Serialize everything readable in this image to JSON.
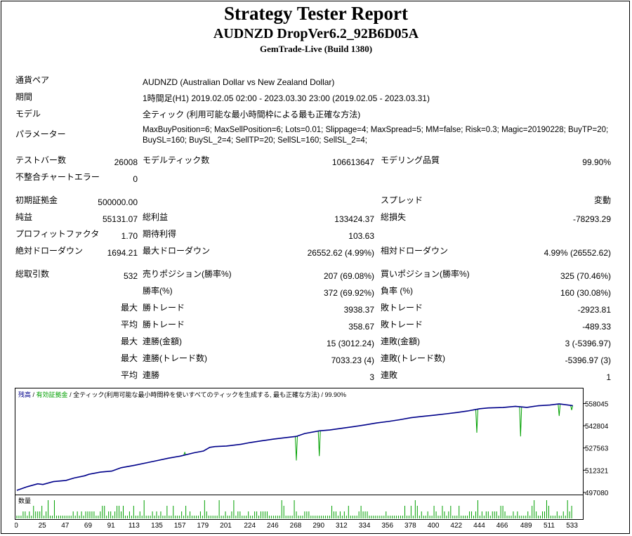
{
  "header": {
    "title": "Strategy Tester Report",
    "subtitle": "AUDNZD DropVer6.2_92B6D05A",
    "server": "GemTrade-Live (Build 1380)"
  },
  "info": {
    "symbol_label": "通貨ペア",
    "symbol_value": "AUDNZD (Australian Dollar vs New Zealand Dollar)",
    "period_label": "期間",
    "period_value": "1時間足(H1) 2019.02.05 02:00 - 2023.03.30 23:00 (2019.02.05 - 2023.03.31)",
    "model_label": "モデル",
    "model_value": "全ティック (利用可能な最小時間枠による最も正確な方法)",
    "params_label": "パラメーター",
    "params_line1": "MaxBuyPosition=6; MaxSellPosition=6; Lots=0.01; Slippage=4; MaxSpread=5; MM=false; Risk=0.3; Magic=20190228; BuyTP=20;",
    "params_line2": "BuySL=160; BuySL_2=4; SellTP=20; SellSL=160; SellSL_2=4;"
  },
  "stats": {
    "bars_label": "テストバー数",
    "bars_value": "26008",
    "ticks_label": "モデルティック数",
    "ticks_value": "106613647",
    "quality_label": "モデリング品質",
    "quality_value": "99.90%",
    "mismatch_label": "不整合チャートエラー",
    "mismatch_value": "0",
    "deposit_label": "初期証拠金",
    "deposit_value": "500000.00",
    "spread_label": "スプレッド",
    "spread_value": "変動",
    "net_label": "純益",
    "net_value": "55131.07",
    "gross_profit_label": "総利益",
    "gross_profit_value": "133424.37",
    "gross_loss_label": "総損失",
    "gross_loss_value": "-78293.29",
    "pf_label": "プロフィットファクタ",
    "pf_value": "1.70",
    "expected_label": "期待利得",
    "expected_value": "103.63",
    "abs_dd_label": "絶対ドローダウン",
    "abs_dd_value": "1694.21",
    "max_dd_label": "最大ドローダウン",
    "max_dd_value": "26552.62 (4.99%)",
    "rel_dd_label": "相対ドローダウン",
    "rel_dd_value": "4.99% (26552.62)",
    "trades_label": "総取引数",
    "trades_value": "532",
    "short_label": "売りポジション(勝率%)",
    "short_value": "207 (69.08%)",
    "long_label": "買いポジション(勝率%)",
    "long_value": "325 (70.46%)",
    "win_label": "勝率(%)",
    "win_value": "372 (69.92%)",
    "loss_label": "負率 (%)",
    "loss_value": "160 (30.08%)",
    "max_label": "最大",
    "avg_label": "平均",
    "win_trade_label": "勝トレード",
    "loss_trade_label": "敗トレード",
    "max_win_value": "3938.37",
    "max_loss_value": "-2923.81",
    "avg_win_value": "358.67",
    "avg_loss_value": "-489.33",
    "cons_win_amt_label": "連勝(金額)",
    "cons_win_amt_value": "15 (3012.24)",
    "cons_loss_amt_label": "連敗(金額)",
    "cons_loss_amt_value": "3 (-5396.97)",
    "cons_win_trades_label": "連勝(トレード数)",
    "cons_win_trades_value": "7033.23 (4)",
    "cons_loss_trades_label": "連敗(トレード数)",
    "cons_loss_trades_value": "-5396.97 (3)",
    "avg_cons_win_label": "連勝",
    "avg_cons_win_value": "3",
    "avg_cons_loss_label": "連敗",
    "avg_cons_loss_value": "1"
  },
  "chart_data": {
    "type": "line",
    "legend_balance": "残高",
    "legend_equity": "有効証拠金",
    "legend_rest": " / 全ティック(利用可能な最小時間枠を使いすべてのティックを生成する, 最も正確な方法) / 99.90%",
    "balance_color": "#00008b",
    "equity_color": "#00a000",
    "ylim": [
      497080,
      565000
    ],
    "yticks": [
      "558045",
      "542804",
      "527563",
      "512321",
      "497080"
    ],
    "xticks": [
      "0",
      "25",
      "47",
      "69",
      "91",
      "113",
      "135",
      "157",
      "179",
      "201",
      "224",
      "246",
      "268",
      "290",
      "312",
      "334",
      "356",
      "378",
      "400",
      "422",
      "444",
      "466",
      "489",
      "511",
      "533"
    ],
    "volume_label": "数量",
    "balance": [
      [
        0,
        499000
      ],
      [
        10,
        501500
      ],
      [
        20,
        503500
      ],
      [
        25,
        503000
      ],
      [
        35,
        505000
      ],
      [
        47,
        505800
      ],
      [
        55,
        507500
      ],
      [
        65,
        509000
      ],
      [
        69,
        510000
      ],
      [
        80,
        511500
      ],
      [
        91,
        512200
      ],
      [
        100,
        514500
      ],
      [
        113,
        516200
      ],
      [
        125,
        518000
      ],
      [
        135,
        519500
      ],
      [
        145,
        521000
      ],
      [
        157,
        522500
      ],
      [
        170,
        524800
      ],
      [
        179,
        526000
      ],
      [
        185,
        528500
      ],
      [
        190,
        529000
      ],
      [
        201,
        529400
      ],
      [
        215,
        530600
      ],
      [
        224,
        531800
      ],
      [
        235,
        533000
      ],
      [
        246,
        534100
      ],
      [
        258,
        535200
      ],
      [
        268,
        536000
      ],
      [
        276,
        538000
      ],
      [
        290,
        539800
      ],
      [
        300,
        540400
      ],
      [
        312,
        541600
      ],
      [
        323,
        542700
      ],
      [
        334,
        543900
      ],
      [
        345,
        545200
      ],
      [
        356,
        546200
      ],
      [
        367,
        547400
      ],
      [
        378,
        548800
      ],
      [
        390,
        549800
      ],
      [
        400,
        550500
      ],
      [
        412,
        551500
      ],
      [
        422,
        552400
      ],
      [
        432,
        553400
      ],
      [
        444,
        555000
      ],
      [
        452,
        555500
      ],
      [
        466,
        555800
      ],
      [
        478,
        556600
      ],
      [
        489,
        555900
      ],
      [
        500,
        557000
      ],
      [
        511,
        557500
      ],
      [
        520,
        558300
      ],
      [
        533,
        557100
      ]
    ],
    "equity_dips": [
      [
        161,
        525000
      ],
      [
        268,
        519500
      ],
      [
        290,
        522500
      ],
      [
        441,
        538500
      ],
      [
        483,
        536000
      ],
      [
        520,
        550000
      ],
      [
        532,
        554000
      ]
    ]
  }
}
